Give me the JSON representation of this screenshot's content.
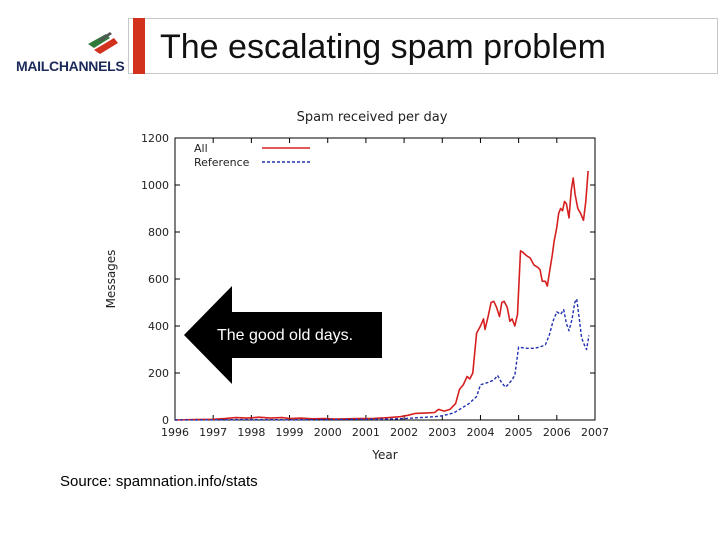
{
  "slide": {
    "logo_text": "MAILCHANNELS",
    "title": "The escalating spam problem",
    "callout": "The good old days.",
    "source": "Source: spamnation.info/stats",
    "accent_color": "#d2311e"
  },
  "chart_data": {
    "type": "line",
    "title": "Spam received per day",
    "xlabel": "Year",
    "ylabel": "Messages",
    "xlim": [
      1996,
      2007
    ],
    "ylim": [
      0,
      1200
    ],
    "xticks": [
      1996,
      1997,
      1998,
      1999,
      2000,
      2001,
      2002,
      2003,
      2004,
      2005,
      2006,
      2007
    ],
    "yticks": [
      0,
      200,
      400,
      600,
      800,
      1000,
      1200
    ],
    "legend_position": "top-left",
    "grid": false,
    "series": [
      {
        "name": "All",
        "color": "#d62020",
        "style": "solid",
        "points": [
          [
            1996.0,
            0
          ],
          [
            1996.5,
            2
          ],
          [
            1997.0,
            3
          ],
          [
            1997.3,
            6
          ],
          [
            1997.6,
            10
          ],
          [
            1997.9,
            8
          ],
          [
            1998.2,
            12
          ],
          [
            1998.5,
            8
          ],
          [
            1998.8,
            10
          ],
          [
            1999.0,
            6
          ],
          [
            1999.3,
            8
          ],
          [
            1999.6,
            5
          ],
          [
            1999.9,
            6
          ],
          [
            2000.2,
            4
          ],
          [
            2000.5,
            5
          ],
          [
            2000.8,
            6
          ],
          [
            2001.2,
            7
          ],
          [
            2001.6,
            10
          ],
          [
            2001.9,
            14
          ],
          [
            2002.1,
            20
          ],
          [
            2002.3,
            28
          ],
          [
            2002.6,
            30
          ],
          [
            2002.8,
            32
          ],
          [
            2002.9,
            45
          ],
          [
            2003.05,
            38
          ],
          [
            2003.2,
            45
          ],
          [
            2003.35,
            70
          ],
          [
            2003.45,
            130
          ],
          [
            2003.55,
            150
          ],
          [
            2003.65,
            185
          ],
          [
            2003.72,
            175
          ],
          [
            2003.8,
            200
          ],
          [
            2003.9,
            370
          ],
          [
            2004.0,
            400
          ],
          [
            2004.08,
            430
          ],
          [
            2004.12,
            385
          ],
          [
            2004.2,
            440
          ],
          [
            2004.28,
            500
          ],
          [
            2004.35,
            505
          ],
          [
            2004.42,
            480
          ],
          [
            2004.5,
            440
          ],
          [
            2004.56,
            500
          ],
          [
            2004.62,
            505
          ],
          [
            2004.7,
            480
          ],
          [
            2004.77,
            420
          ],
          [
            2004.83,
            430
          ],
          [
            2004.9,
            400
          ],
          [
            2004.97,
            450
          ],
          [
            2005.05,
            720
          ],
          [
            2005.1,
            715
          ],
          [
            2005.2,
            700
          ],
          [
            2005.3,
            690
          ],
          [
            2005.4,
            660
          ],
          [
            2005.5,
            650
          ],
          [
            2005.56,
            640
          ],
          [
            2005.62,
            590
          ],
          [
            2005.7,
            590
          ],
          [
            2005.75,
            570
          ],
          [
            2005.82,
            640
          ],
          [
            2005.88,
            700
          ],
          [
            2005.93,
            760
          ],
          [
            2006.0,
            820
          ],
          [
            2006.05,
            880
          ],
          [
            2006.1,
            900
          ],
          [
            2006.15,
            890
          ],
          [
            2006.2,
            930
          ],
          [
            2006.25,
            920
          ],
          [
            2006.32,
            860
          ],
          [
            2006.38,
            980
          ],
          [
            2006.43,
            1030
          ],
          [
            2006.48,
            960
          ],
          [
            2006.55,
            900
          ],
          [
            2006.62,
            880
          ],
          [
            2006.7,
            850
          ],
          [
            2006.76,
            930
          ],
          [
            2006.82,
            1060
          ]
        ]
      },
      {
        "name": "Reference",
        "color": "#2030b0",
        "style": "dashed",
        "points": [
          [
            1996.0,
            0
          ],
          [
            1997.0,
            1
          ],
          [
            1998.0,
            2
          ],
          [
            1999.0,
            1
          ],
          [
            2000.0,
            2
          ],
          [
            2001.0,
            3
          ],
          [
            2001.5,
            4
          ],
          [
            2002.0,
            6
          ],
          [
            2002.4,
            10
          ],
          [
            2002.8,
            14
          ],
          [
            2003.0,
            18
          ],
          [
            2003.3,
            30
          ],
          [
            2003.5,
            50
          ],
          [
            2003.7,
            70
          ],
          [
            2003.9,
            100
          ],
          [
            2004.0,
            150
          ],
          [
            2004.2,
            160
          ],
          [
            2004.35,
            170
          ],
          [
            2004.45,
            190
          ],
          [
            2004.55,
            160
          ],
          [
            2004.65,
            140
          ],
          [
            2004.72,
            150
          ],
          [
            2004.82,
            170
          ],
          [
            2004.9,
            190
          ],
          [
            2005.0,
            310
          ],
          [
            2005.2,
            305
          ],
          [
            2005.4,
            305
          ],
          [
            2005.55,
            310
          ],
          [
            2005.7,
            320
          ],
          [
            2005.8,
            360
          ],
          [
            2005.9,
            420
          ],
          [
            2006.0,
            460
          ],
          [
            2006.1,
            450
          ],
          [
            2006.18,
            470
          ],
          [
            2006.25,
            410
          ],
          [
            2006.32,
            380
          ],
          [
            2006.4,
            430
          ],
          [
            2006.47,
            500
          ],
          [
            2006.52,
            515
          ],
          [
            2006.58,
            440
          ],
          [
            2006.65,
            350
          ],
          [
            2006.72,
            320
          ],
          [
            2006.78,
            300
          ],
          [
            2006.84,
            360
          ]
        ]
      }
    ]
  }
}
